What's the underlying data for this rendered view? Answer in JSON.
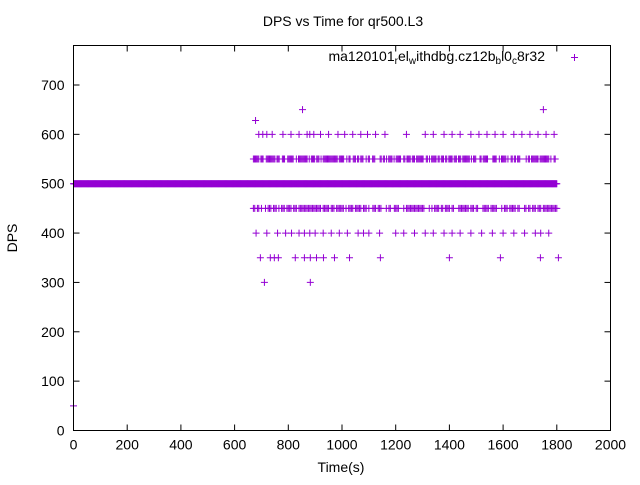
{
  "chart_data": {
    "type": "scatter",
    "title": "DPS vs Time for qr500.L3",
    "xlabel": "Time(s)",
    "ylabel": "DPS",
    "xlim": [
      0,
      2000
    ],
    "ylim": [
      0,
      780
    ],
    "xticks": [
      0,
      200,
      400,
      600,
      800,
      1000,
      1200,
      1400,
      1600,
      1800,
      2000
    ],
    "yticks": [
      0,
      100,
      200,
      300,
      400,
      500,
      600,
      700
    ],
    "grid": false,
    "legend_position": "top-right",
    "color": "#9400d3",
    "series": [
      {
        "name": "ma120101_rel_withdbg.cz12b_bl0_c8r32",
        "legend_parts": [
          [
            "ma120101",
            ""
          ],
          [
            "r",
            "sub"
          ],
          [
            "el",
            ""
          ],
          [
            "w",
            "sub"
          ],
          [
            "ithdbg.cz12b",
            ""
          ],
          [
            "b",
            "sub"
          ],
          [
            "l0",
            ""
          ],
          [
            "c",
            "sub"
          ],
          [
            "8r32",
            ""
          ]
        ],
        "dense_ranges": [
          {
            "y": 500,
            "x_start": 0,
            "x_end": 1800,
            "step": 2
          },
          {
            "y": 550,
            "x_start": 670,
            "x_end": 1800,
            "step": 4
          },
          {
            "y": 450,
            "x_start": 670,
            "x_end": 1800,
            "step": 5
          }
        ],
        "points": [
          [
            0,
            50
          ],
          [
            678,
            628
          ],
          [
            853,
            650
          ],
          [
            1750,
            650
          ],
          [
            711,
            300
          ],
          [
            882,
            300
          ],
          [
            696,
            350
          ],
          [
            733,
            350
          ],
          [
            748,
            350
          ],
          [
            763,
            350
          ],
          [
            826,
            350
          ],
          [
            860,
            350
          ],
          [
            882,
            350
          ],
          [
            905,
            350
          ],
          [
            931,
            350
          ],
          [
            972,
            350
          ],
          [
            1028,
            350
          ],
          [
            1143,
            350
          ],
          [
            1400,
            350
          ],
          [
            1590,
            350
          ],
          [
            1739,
            350
          ],
          [
            1806,
            350
          ],
          [
            680,
            400
          ],
          [
            720,
            400
          ],
          [
            760,
            400
          ],
          [
            790,
            400
          ],
          [
            812,
            400
          ],
          [
            840,
            400
          ],
          [
            860,
            400
          ],
          [
            880,
            400
          ],
          [
            900,
            400
          ],
          [
            930,
            400
          ],
          [
            960,
            400
          ],
          [
            990,
            400
          ],
          [
            1020,
            400
          ],
          [
            1060,
            400
          ],
          [
            1080,
            400
          ],
          [
            1100,
            400
          ],
          [
            1140,
            400
          ],
          [
            1200,
            400
          ],
          [
            1230,
            400
          ],
          [
            1270,
            400
          ],
          [
            1310,
            400
          ],
          [
            1340,
            400
          ],
          [
            1380,
            400
          ],
          [
            1410,
            400
          ],
          [
            1440,
            400
          ],
          [
            1480,
            400
          ],
          [
            1520,
            400
          ],
          [
            1560,
            400
          ],
          [
            1600,
            400
          ],
          [
            1640,
            400
          ],
          [
            1680,
            400
          ],
          [
            1720,
            400
          ],
          [
            1740,
            400
          ],
          [
            1770,
            400
          ],
          [
            690,
            600
          ],
          [
            705,
            600
          ],
          [
            720,
            600
          ],
          [
            740,
            600
          ],
          [
            780,
            600
          ],
          [
            810,
            600
          ],
          [
            840,
            600
          ],
          [
            870,
            600
          ],
          [
            880,
            600
          ],
          [
            895,
            600
          ],
          [
            920,
            600
          ],
          [
            950,
            600
          ],
          [
            985,
            600
          ],
          [
            1010,
            600
          ],
          [
            1040,
            600
          ],
          [
            1070,
            600
          ],
          [
            1095,
            600
          ],
          [
            1125,
            600
          ],
          [
            1160,
            600
          ],
          [
            1240,
            600
          ],
          [
            1310,
            600
          ],
          [
            1340,
            600
          ],
          [
            1380,
            600
          ],
          [
            1410,
            600
          ],
          [
            1440,
            600
          ],
          [
            1480,
            600
          ],
          [
            1510,
            600
          ],
          [
            1540,
            600
          ],
          [
            1570,
            600
          ],
          [
            1600,
            600
          ],
          [
            1640,
            600
          ],
          [
            1670,
            600
          ],
          [
            1700,
            600
          ],
          [
            1730,
            600
          ],
          [
            1760,
            600
          ],
          [
            1790,
            600
          ]
        ]
      }
    ]
  }
}
